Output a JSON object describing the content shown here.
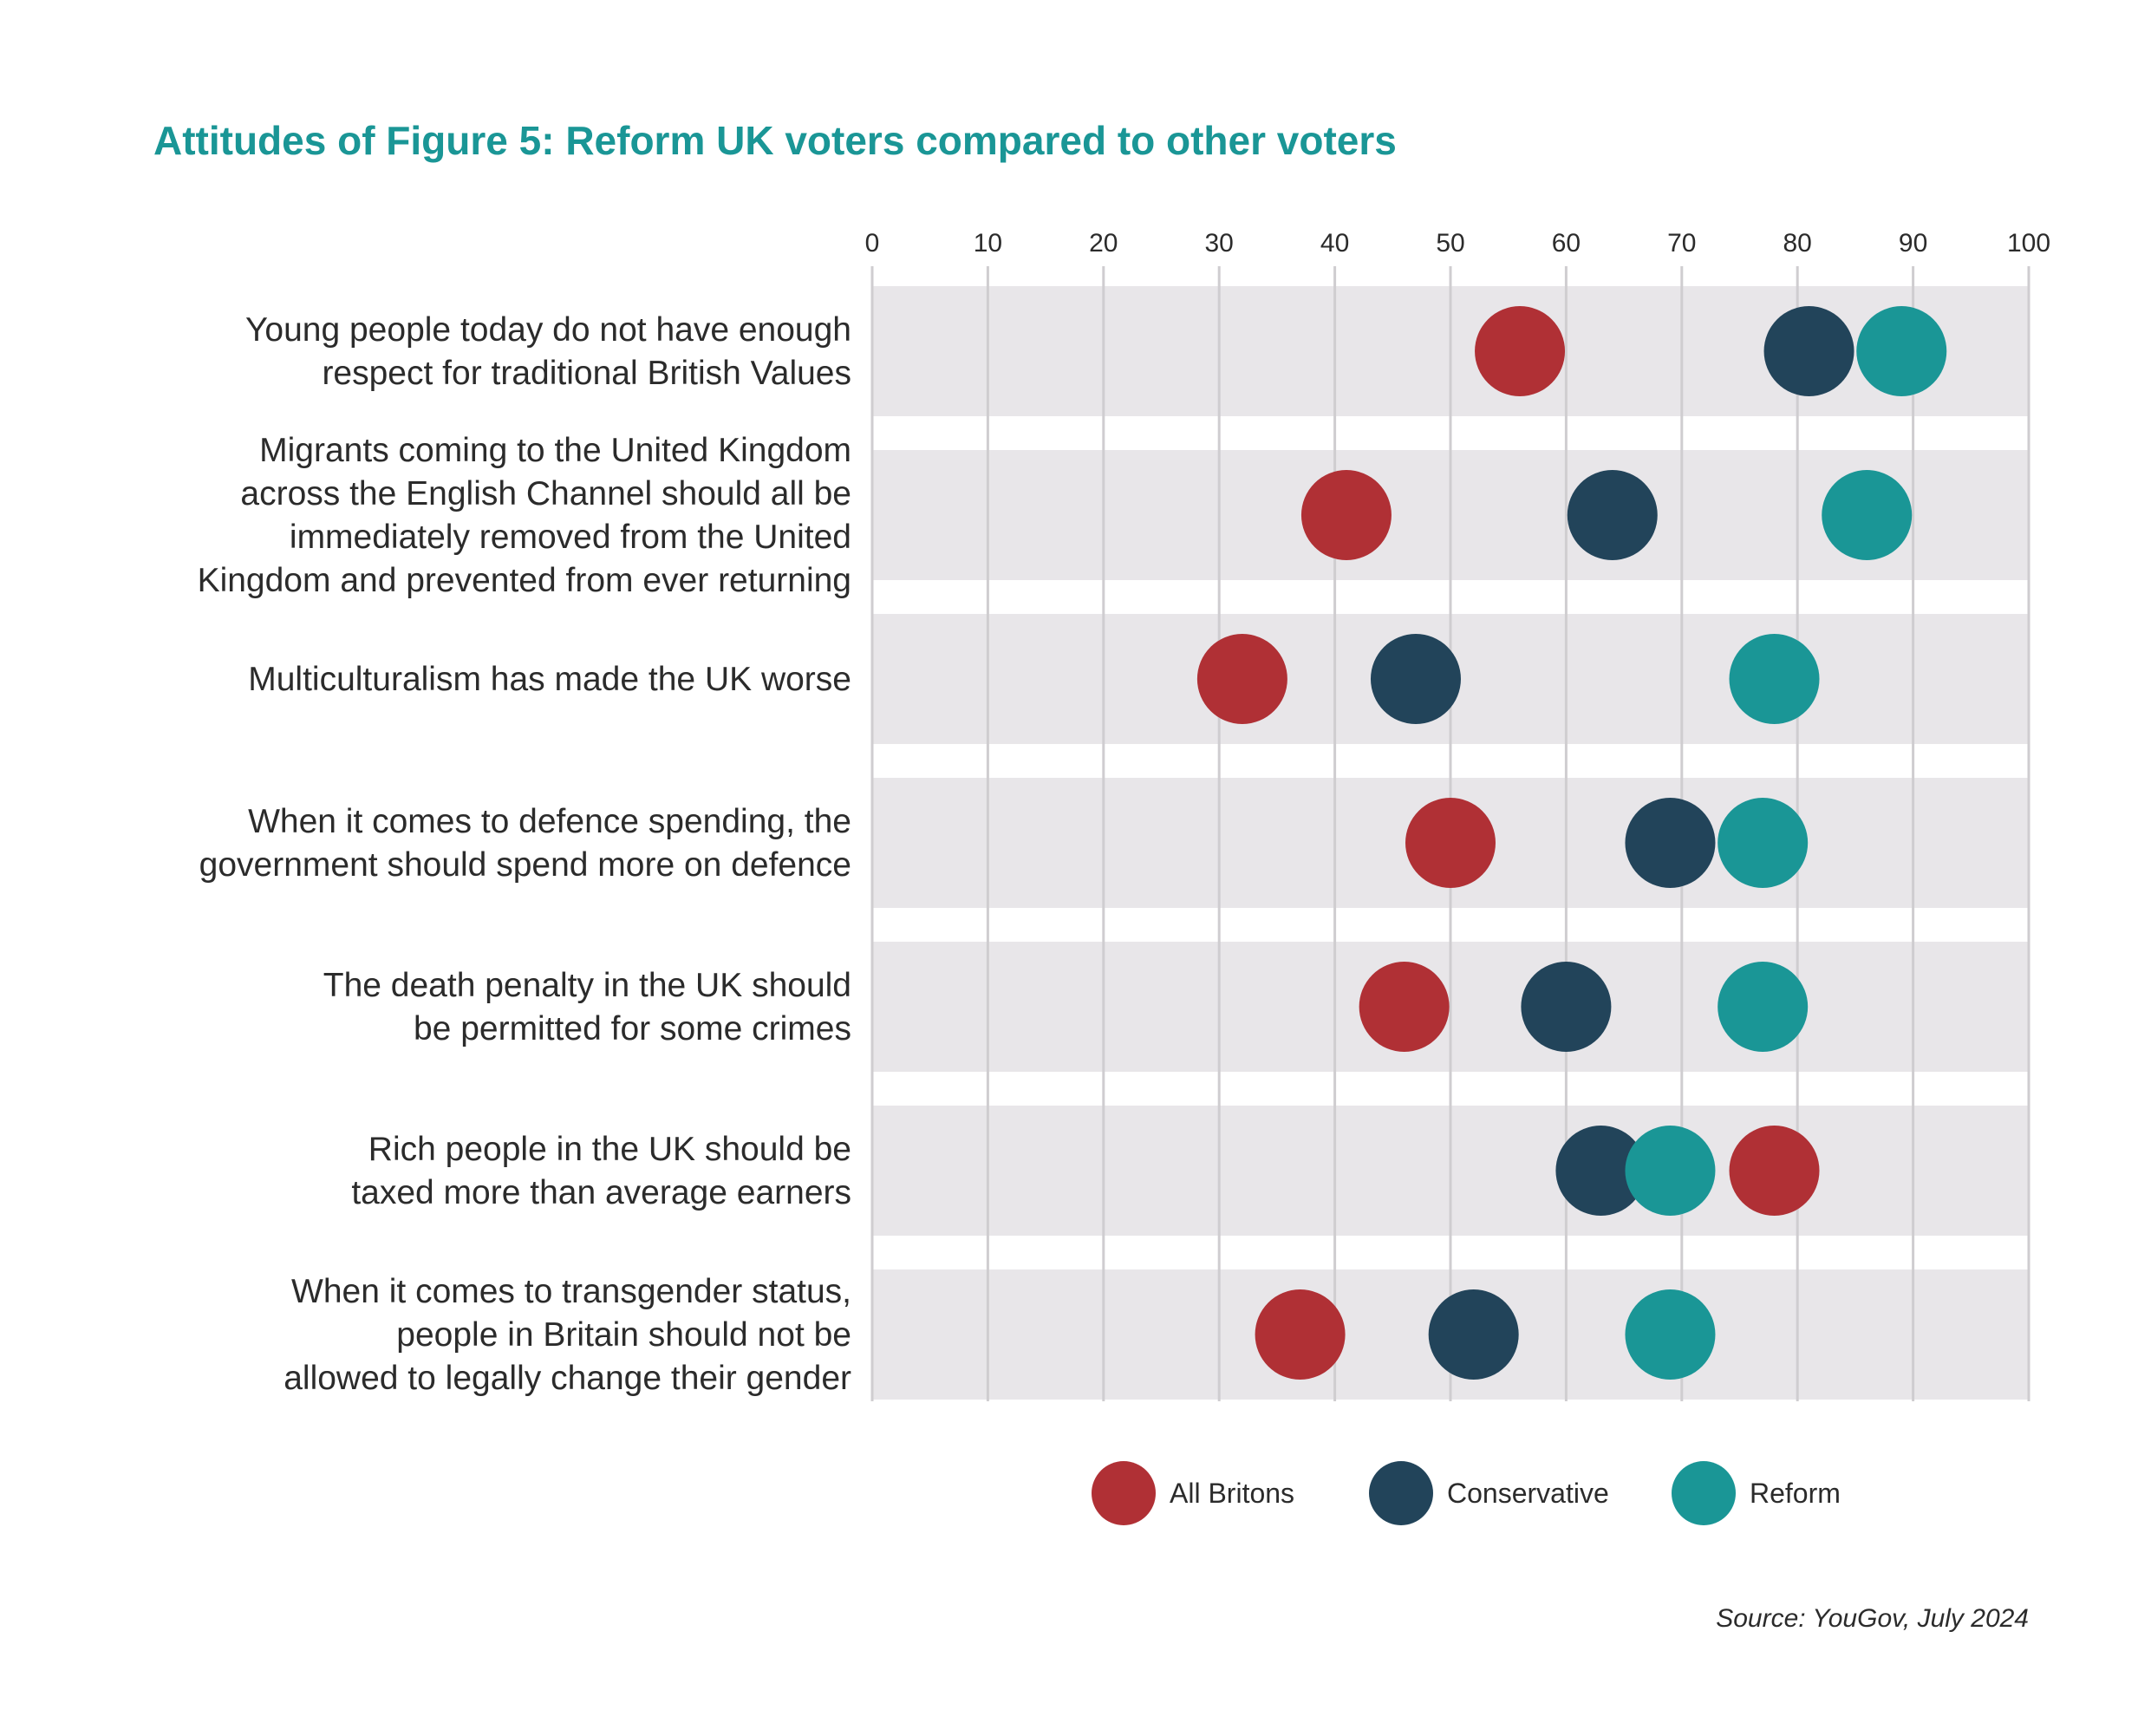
{
  "chart_data": {
    "type": "scatter",
    "title": "Attitudes of Figure 5: Reform UK voters compared to other voters",
    "xlim": [
      0,
      100
    ],
    "x_ticks": [
      0,
      10,
      20,
      30,
      40,
      50,
      60,
      70,
      80,
      90,
      100
    ],
    "x_tick_labels": [
      "0",
      "10",
      "20",
      "30",
      "40",
      "50",
      "60",
      "70",
      "80",
      "90",
      "100"
    ],
    "grid": true,
    "legend_position": "bottom",
    "categories": [
      [
        "Young people today do not have enough",
        "respect for traditional British Values"
      ],
      [
        "Migrants coming to the United Kingdom",
        "across the English Channel should all be",
        "immediately removed from the United",
        "Kingdom and prevented from ever returning"
      ],
      [
        "Multiculturalism has made the UK worse"
      ],
      [
        "When it comes to defence spending, the",
        "government should spend more on defence"
      ],
      [
        "The death penalty in the UK should",
        "be permitted for some crimes"
      ],
      [
        "Rich people in the UK should be",
        "taxed more than average earners"
      ],
      [
        "When it comes to transgender status,",
        "people in Britain should not be",
        "allowed to legally change their gender"
      ]
    ],
    "series": [
      {
        "name": "All Britons",
        "color": "#b03035",
        "values": [
          56,
          41,
          32,
          50,
          46,
          78,
          37
        ]
      },
      {
        "name": "Conservative",
        "color": "#22445a",
        "values": [
          81,
          64,
          47,
          69,
          60,
          63,
          52
        ]
      },
      {
        "name": "Reform",
        "color": "#1a9696",
        "values": [
          89,
          86,
          78,
          77,
          77,
          69,
          69
        ]
      }
    ],
    "source": "Source: YouGov, July 2024"
  }
}
